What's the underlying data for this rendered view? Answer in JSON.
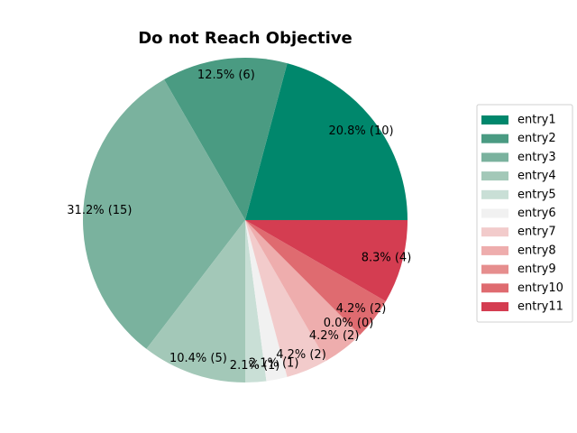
{
  "chart_data": {
    "type": "pie",
    "title": "Do not Reach Objective",
    "categories": [
      "entry1",
      "entry2",
      "entry3",
      "entry4",
      "entry5",
      "entry6",
      "entry7",
      "entry8",
      "entry9",
      "entry10",
      "entry11"
    ],
    "values": [
      10,
      6,
      15,
      5,
      1,
      1,
      2,
      2,
      0,
      2,
      4
    ],
    "labels": [
      "20.8%  (10)",
      "12.5%  (6)",
      "31.2%  (15)",
      "10.4%  (5)",
      "2.1%  (1)",
      "2.1%  (1)",
      "4.2%  (2)",
      "4.2%  (2)",
      "0.0%  (0)",
      "4.2%  (2)",
      "8.3%  (4)"
    ],
    "colors": [
      "#00876c",
      "#4a9b82",
      "#7ab29e",
      "#a3c8b8",
      "#c9dfd6",
      "#f1f1f1",
      "#f2cbcb",
      "#eeadad",
      "#e68e8e",
      "#df6b70",
      "#d43d51"
    ],
    "start_angle_deg": 0,
    "direction": "counterclockwise",
    "legend": {
      "placement": "right"
    }
  }
}
